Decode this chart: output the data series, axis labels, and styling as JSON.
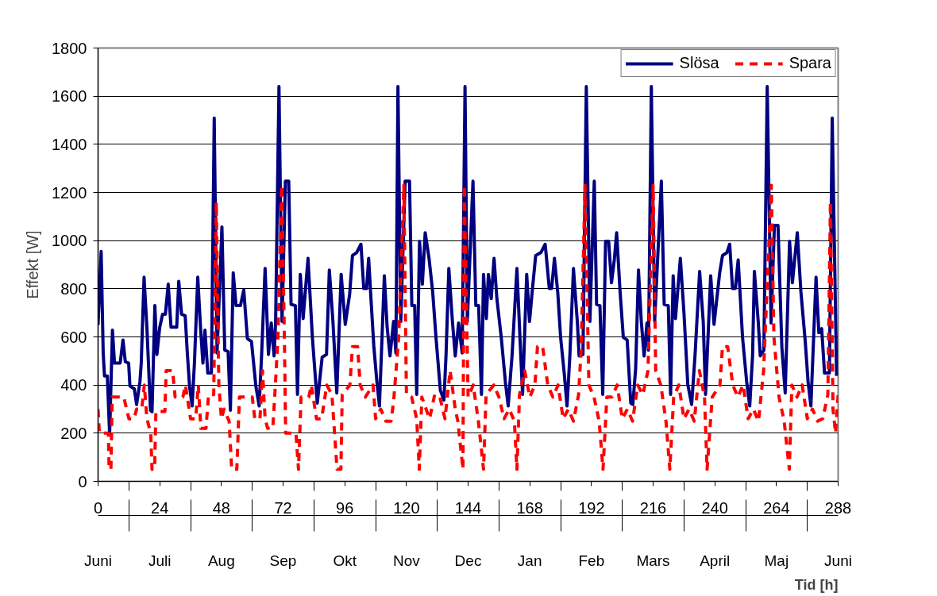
{
  "chart_data": {
    "type": "line",
    "xlabel": "Tid [h]",
    "ylabel": "Effekt [W]",
    "xlim": [
      0,
      288
    ],
    "ylim": [
      0,
      1800
    ],
    "xticks": [
      0,
      24,
      48,
      72,
      96,
      120,
      144,
      168,
      192,
      216,
      240,
      264,
      288
    ],
    "yticks": [
      0,
      200,
      400,
      600,
      800,
      1000,
      1200,
      1400,
      1600,
      1800
    ],
    "grid": "y",
    "legend": "top right",
    "annotations": [
      "Juni",
      "Juli",
      "Aug",
      "Sep",
      "Okt",
      "Nov",
      "Dec",
      "Jan",
      "Feb",
      "Mars",
      "April",
      "Maj",
      "Juni"
    ],
    "series": [
      {
        "name": "Slösa",
        "color": "#000080",
        "line_style": "solid",
        "x": [
          0,
          1.2,
          2,
          2.5,
          3.6,
          4.5,
          5.6,
          6.4,
          8.6,
          9.7,
          10.6,
          11.9,
          12.4,
          14.1,
          15,
          16.3,
          16.8,
          17.9,
          19,
          20.4,
          21,
          22.1,
          22.9,
          24,
          25.1,
          26.2,
          27.3,
          28.4,
          30.6,
          31.4,
          32.5,
          33.9,
          34.7,
          35.6,
          36.6,
          37.5,
          38.8,
          39.9,
          40.8,
          41.6,
          42.7,
          44.1,
          45.2,
          46.3,
          47.1,
          48.2,
          49.3,
          50.6,
          51.5,
          52.6,
          53.7,
          55.4,
          56.7,
          58.1,
          59.7,
          61.4,
          62.7,
          63.6,
          65,
          66.3,
          67.4,
          68.5,
          69.1,
          70.4,
          71.6,
          72.9,
          74.2,
          75.1,
          76.8,
          77.6,
          78.7,
          79.8,
          81.7,
          83.4,
          85.3,
          87.2,
          88.9,
          90,
          91.4,
          92.9,
          94.6,
          96.2,
          97.9,
          99,
          100.6,
          102.3,
          103.4,
          104.5,
          105.3,
          106.2,
          107.3,
          108.4,
          109.5,
          111.4,
          112.5,
          113.6,
          115,
          115.9,
          116.7,
          117.8,
          119.5,
          121.2,
          122.1,
          123.2,
          124,
          125.1,
          126.2,
          127.3,
          128.8,
          130.2,
          131.5,
          133.2,
          134.6,
          135.4,
          136.5,
          137.9,
          139,
          140.3,
          141.7,
          142.8,
          143.7,
          145.9,
          147,
          148.1,
          149.2,
          150,
          151.1,
          151.9,
          153,
          154.1,
          155.2,
          156.9,
          158.5,
          159.6,
          161.1,
          163,
          164.1,
          165.2,
          166.8,
          167.9,
          169,
          170.3,
          172.3,
          174,
          175.6,
          176.5,
          177.6,
          178.9,
          180,
          181.4,
          182.5,
          183.6,
          185,
          186.5,
          187.2,
          188.7,
          190,
          191.4,
          193.1,
          194,
          195.3,
          196.4,
          197.5,
          198.7,
          199.8,
          200.9,
          201.8,
          203.1,
          204.4,
          205.9,
          207.3,
          208.1,
          209.2,
          210.3,
          211.4,
          212.5,
          213.6,
          214.2,
          215.3,
          216.6,
          219.2,
          220.3,
          221.9,
          222.8,
          223.8,
          224.7,
          226.6,
          228,
          229.5,
          231,
          232.3,
          234.1,
          235.5,
          236.4,
          238.4,
          239.7,
          241.9,
          243,
          244.7,
          245.8,
          246.9,
          248,
          249.1,
          250.8,
          252.4,
          253.6,
          254.7,
          255.4,
          256.9,
          257.7,
          259.1,
          260.4,
          261.9,
          263.2,
          264.6,
          266.1,
          267.4,
          269.1,
          270.2,
          272.1,
          273.5,
          275.2,
          276.3,
          277.4,
          279.4,
          280.5,
          281.6,
          282.7,
          284.6,
          285.7,
          287.4
        ],
        "values": [
          650,
          955,
          533,
          438,
          438,
          194,
          628,
          491,
          491,
          587,
          497,
          491,
          396,
          384,
          319,
          414,
          491,
          848,
          640,
          295,
          289,
          730,
          527,
          640,
          694,
          694,
          819,
          640,
          640,
          831,
          694,
          688,
          539,
          396,
          313,
          491,
          848,
          634,
          491,
          628,
          450,
          450,
          1509,
          533,
          753,
          1057,
          545,
          539,
          295,
          866,
          730,
          730,
          795,
          593,
          581,
          396,
          313,
          515,
          884,
          527,
          658,
          521,
          664,
          1640,
          664,
          1247,
          1247,
          735,
          730,
          361,
          860,
          676,
          926,
          598,
          325,
          515,
          527,
          878,
          664,
          367,
          860,
          652,
          777,
          938,
          950,
          985,
          801,
          801,
          926,
          759,
          563,
          426,
          313,
          854,
          640,
          521,
          664,
          533,
          1640,
          664,
          1247,
          1247,
          730,
          730,
          361,
          997,
          819,
          1033,
          926,
          789,
          598,
          378,
          337,
          521,
          884,
          664,
          521,
          658,
          533,
          1640,
          664,
          1247,
          730,
          730,
          361,
          860,
          676,
          860,
          759,
          926,
          759,
          598,
          414,
          313,
          521,
          884,
          617,
          361,
          860,
          664,
          795,
          938,
          950,
          985,
          801,
          801,
          926,
          783,
          598,
          450,
          313,
          521,
          884,
          664,
          521,
          527,
          1640,
          664,
          1247,
          735,
          730,
          361,
          997,
          997,
          825,
          920,
          1033,
          795,
          598,
          587,
          325,
          319,
          468,
          878,
          664,
          521,
          658,
          545,
          1640,
          664,
          1247,
          735,
          730,
          361,
          854,
          676,
          926,
          700,
          402,
          319,
          521,
          872,
          664,
          361,
          854,
          652,
          866,
          938,
          950,
          985,
          801,
          801,
          920,
          598,
          414,
          313,
          521,
          872,
          664,
          521,
          545,
          1640,
          658,
          1063,
          1063,
          557,
          367,
          997,
          825,
          1033,
          789,
          581,
          414,
          313,
          848,
          617,
          634,
          450,
          450,
          1509,
          438
        ]
      },
      {
        "name": "Spara",
        "color": "#ff0000",
        "line_style": "dashed",
        "x": [
          0,
          0.5,
          4,
          4.3,
          5,
          5.5,
          10,
          12,
          14,
          15,
          17,
          18,
          19,
          20.5,
          21,
          22,
          22.5,
          26,
          26.5,
          29,
          30,
          33,
          34,
          36,
          38,
          39,
          40,
          42,
          43,
          45,
          46,
          47,
          48,
          49,
          51,
          52,
          54,
          55,
          60,
          61,
          63,
          64,
          65,
          66,
          68,
          69,
          70,
          71.5,
          72.5,
          73,
          77,
          78,
          79,
          82,
          83,
          85,
          87,
          89,
          91,
          93,
          94.5,
          95,
          98,
          99,
          101,
          102,
          104,
          107,
          108,
          110,
          112,
          114,
          115,
          117,
          119,
          120,
          122,
          124,
          125,
          126,
          129,
          131,
          133,
          135,
          137,
          139,
          140,
          142,
          142.5,
          144,
          146,
          148,
          150,
          151,
          154,
          156,
          158,
          160,
          162,
          163,
          164,
          166,
          168,
          170,
          171,
          173,
          175,
          177,
          179,
          181,
          183,
          185,
          187,
          188,
          189.5,
          191,
          193,
          195,
          196.5,
          198,
          200,
          202,
          204,
          206,
          208,
          210,
          212,
          214,
          216,
          217,
          219,
          221,
          222.5,
          224,
          226,
          228,
          230,
          232,
          234,
          236,
          237,
          239,
          242,
          243,
          245,
          247,
          249,
          251,
          253,
          255,
          257,
          259,
          262,
          263,
          265,
          267,
          269,
          270,
          272,
          274,
          276,
          278,
          280,
          282,
          284,
          285,
          286,
          287,
          288
        ],
        "values": [
          300,
          200,
          200,
          50,
          50,
          350,
          350,
          260,
          260,
          300,
          300,
          400,
          260,
          200,
          50,
          50,
          290,
          290,
          460,
          460,
          350,
          350,
          400,
          260,
          260,
          400,
          220,
          220,
          360,
          360,
          1160,
          400,
          260,
          300,
          250,
          50,
          50,
          350,
          350,
          260,
          260,
          460,
          260,
          220,
          220,
          400,
          600,
          1230,
          600,
          200,
          200,
          50,
          350,
          350,
          400,
          260,
          260,
          400,
          360,
          50,
          50,
          360,
          400,
          560,
          560,
          400,
          350,
          400,
          260,
          300,
          250,
          250,
          330,
          600,
          1230,
          360,
          350,
          260,
          50,
          350,
          260,
          360,
          350,
          260,
          460,
          300,
          250,
          50,
          1230,
          350,
          400,
          250,
          50,
          360,
          400,
          350,
          260,
          300,
          250,
          50,
          360,
          460,
          350,
          400,
          560,
          560,
          400,
          350,
          400,
          260,
          300,
          250,
          360,
          550,
          1230,
          400,
          350,
          250,
          50,
          350,
          350,
          400,
          260,
          300,
          250,
          400,
          360,
          460,
          1230,
          460,
          400,
          250,
          50,
          350,
          400,
          260,
          300,
          250,
          460,
          350,
          50,
          350,
          400,
          560,
          560,
          400,
          350,
          400,
          260,
          300,
          250,
          460,
          1230,
          600,
          350,
          250,
          50,
          400,
          350,
          400,
          260,
          300,
          250,
          260,
          360,
          1160,
          300,
          200,
          360
        ]
      }
    ]
  }
}
